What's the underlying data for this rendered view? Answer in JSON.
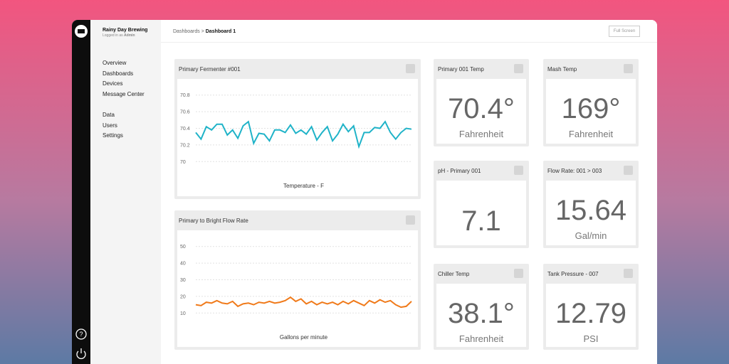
{
  "sidebar": {
    "brand": "Rainy Day Brewing",
    "login_prefix": "Logged in as",
    "user": "Admin",
    "nav": [
      "Overview",
      "Dashboards",
      "Devices",
      "Message Center"
    ],
    "nav_secondary": [
      "Data",
      "Users",
      "Settings"
    ]
  },
  "header": {
    "breadcrumb": "Dashboards",
    "separator": ">",
    "current": "Dashboard 1",
    "button": "Full Screen"
  },
  "widgets": [
    {
      "title": "Primary 001 Temp",
      "value": "70.4°",
      "unit": "Fahrenheit"
    },
    {
      "title": "Mash Temp",
      "value": "169°",
      "unit": "Fahrenheit"
    },
    {
      "title": "pH - Primary 001",
      "value": "7.1"
    },
    {
      "title": "Flow Rate: 001 > 003",
      "value": "15.64",
      "unit": "Gal/min"
    },
    {
      "title": "Chiller Temp",
      "value": "38.1°",
      "unit": "Fahrenheit"
    },
    {
      "title": "Tank Pressure - 007",
      "value": "12.79",
      "unit": "PSI"
    }
  ],
  "chart_data": [
    {
      "type": "line",
      "title": "Primary Fermenter #001",
      "x_label": "Temperature - F",
      "color": "#1fb3c8",
      "ylim": [
        69.9,
        70.9
      ],
      "yticks": [
        70,
        70.2,
        70.4,
        70.6,
        70.8
      ],
      "grid": true,
      "values": [
        70.35,
        70.27,
        70.42,
        70.38,
        70.45,
        70.45,
        70.32,
        70.38,
        70.28,
        70.43,
        70.48,
        70.22,
        70.34,
        70.33,
        70.25,
        70.38,
        70.38,
        70.35,
        70.44,
        70.34,
        70.38,
        70.33,
        70.42,
        70.26,
        70.35,
        70.42,
        70.25,
        70.33,
        70.45,
        70.36,
        70.43,
        70.18,
        70.35,
        70.35,
        70.41,
        70.4,
        70.48,
        70.35,
        70.27,
        70.35,
        70.4,
        70.39
      ]
    },
    {
      "type": "line",
      "title": "Primary to Bright Flow Rate",
      "x_label": "Gallons per minute",
      "color": "#f07a1a",
      "ylim": [
        5,
        55
      ],
      "yticks": [
        10,
        20,
        30,
        40,
        50
      ],
      "grid": true,
      "values": [
        15,
        14.5,
        16.5,
        16,
        17.5,
        16,
        15.5,
        17,
        14,
        15.5,
        16,
        15,
        16.5,
        16,
        17,
        16,
        16.5,
        17.5,
        19.5,
        17,
        18.5,
        15.5,
        17,
        15,
        16.5,
        15.5,
        16.5,
        15,
        17,
        15.5,
        17.5,
        16,
        14.5,
        17.5,
        16,
        18,
        16.5,
        17.5,
        15,
        13.5,
        14,
        17
      ]
    }
  ]
}
